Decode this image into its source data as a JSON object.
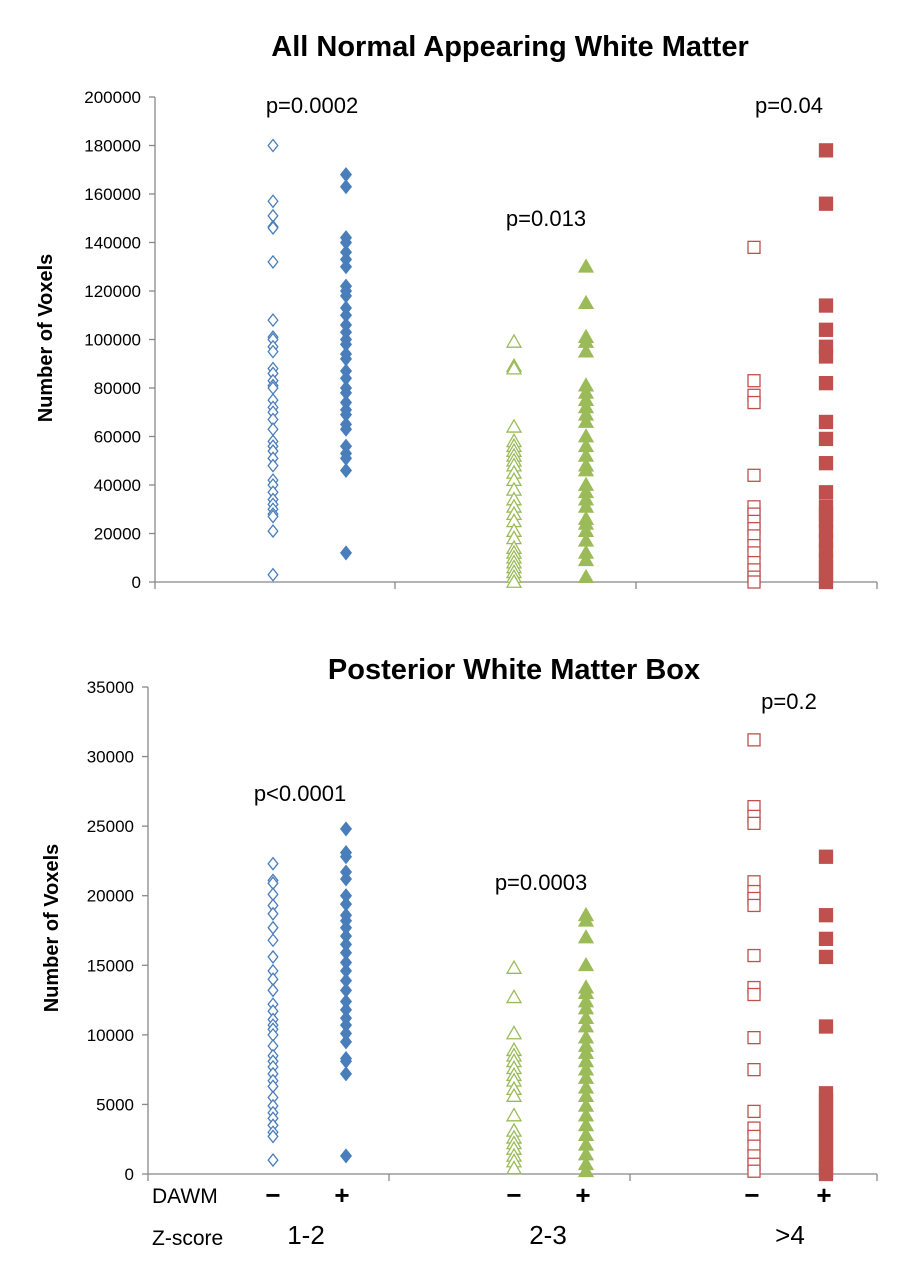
{
  "colors": {
    "blue": "#4a7ebb",
    "green": "#9bbb59",
    "red": "#c0504d"
  },
  "footer": {
    "dawm_label": "DAWM",
    "zscore_label": "Z-score",
    "signs": [
      "−",
      "+",
      "−",
      "+",
      "−",
      "+"
    ],
    "zscores": [
      "1-2",
      "2-3",
      ">4"
    ]
  },
  "chart_data": [
    {
      "type": "scatter",
      "title": "All Normal Appearing White Matter",
      "ylabel": "Number of Voxels",
      "ylim": [
        0,
        200000
      ],
      "yticks": [
        0,
        20000,
        40000,
        60000,
        80000,
        100000,
        120000,
        140000,
        160000,
        180000,
        200000
      ],
      "p_values": [
        "p=0.0002",
        "p=0.013",
        "p=0.04"
      ],
      "series": [
        {
          "group": "1-2",
          "dawm": "−",
          "marker": "diamond-open",
          "color": "#4a7ebb",
          "values": [
            180000,
            157000,
            151000,
            146500,
            146000,
            132000,
            108000,
            101000,
            100000,
            97000,
            95000,
            88000,
            86000,
            83000,
            81000,
            80000,
            75000,
            72000,
            70000,
            67000,
            63000,
            58000,
            56000,
            54000,
            51000,
            48000,
            42000,
            40000,
            37000,
            34000,
            32000,
            30000,
            28000,
            27000,
            21000,
            3000
          ]
        },
        {
          "group": "1-2",
          "dawm": "+",
          "marker": "diamond-filled",
          "color": "#4a7ebb",
          "values": [
            168000,
            163000,
            142000,
            140000,
            136000,
            133000,
            130000,
            122000,
            120000,
            118000,
            113000,
            110000,
            106000,
            103000,
            100000,
            98000,
            94000,
            92000,
            87000,
            84000,
            80000,
            78000,
            74000,
            71000,
            69000,
            65000,
            63000,
            56000,
            53000,
            51000,
            46000,
            12000
          ]
        },
        {
          "group": "2-3",
          "dawm": "−",
          "marker": "triangle-open",
          "color": "#9bbb59",
          "values": [
            99000,
            89000,
            88000,
            64000,
            58000,
            56000,
            54000,
            52000,
            50000,
            48000,
            45000,
            42000,
            38000,
            34000,
            31000,
            28000,
            25000,
            21000,
            18000,
            14000,
            12000,
            10000,
            8000,
            6000,
            4000,
            2000,
            0
          ]
        },
        {
          "group": "2-3",
          "dawm": "+",
          "marker": "triangle-filled",
          "color": "#9bbb59",
          "values": [
            130000,
            115000,
            101000,
            99000,
            95000,
            81000,
            78000,
            75000,
            72000,
            69000,
            66000,
            60000,
            56000,
            52000,
            48000,
            46000,
            40000,
            37000,
            34000,
            31000,
            26000,
            24000,
            21000,
            17000,
            12000,
            9000,
            2000
          ]
        },
        {
          "group": ">4",
          "dawm": "−",
          "marker": "square-open",
          "color": "#c0504d",
          "values": [
            138000,
            83000,
            77000,
            74000,
            44000,
            31000,
            28000,
            25000,
            22000,
            19000,
            15000,
            12000,
            8000,
            5000,
            2000,
            0
          ]
        },
        {
          "group": ">4",
          "dawm": "+",
          "marker": "square-filled",
          "color": "#c0504d",
          "values": [
            178000,
            156000,
            114000,
            104000,
            97000,
            93000,
            82000,
            66000,
            59000,
            49000,
            37000,
            31000,
            28000,
            25000,
            21000,
            17000,
            13000,
            9000,
            6000,
            3000,
            0
          ]
        }
      ]
    },
    {
      "type": "scatter",
      "title": "Posterior White Matter Box",
      "ylabel": "Number of Voxels",
      "ylim": [
        0,
        35000
      ],
      "yticks": [
        0,
        5000,
        10000,
        15000,
        20000,
        25000,
        30000,
        35000
      ],
      "p_values": [
        "p<0.0001",
        "p=0.0003",
        "p=0.2"
      ],
      "series": [
        {
          "group": "1-2",
          "dawm": "−",
          "marker": "diamond-open",
          "color": "#4a7ebb",
          "values": [
            22300,
            21100,
            20900,
            20100,
            19300,
            18700,
            17700,
            16800,
            15600,
            14600,
            14000,
            13200,
            12200,
            11700,
            11100,
            10700,
            10400,
            10000,
            9200,
            8500,
            8100,
            7700,
            7200,
            6700,
            6300,
            5500,
            4900,
            4400,
            4000,
            3500,
            3000,
            2700,
            1000
          ]
        },
        {
          "group": "1-2",
          "dawm": "+",
          "marker": "diamond-filled",
          "color": "#4a7ebb",
          "values": [
            24800,
            23100,
            22800,
            21700,
            21200,
            20000,
            19400,
            18600,
            18200,
            17700,
            17100,
            16500,
            15900,
            15200,
            14600,
            13900,
            13200,
            12400,
            11800,
            11200,
            10700,
            10100,
            9500,
            8300,
            8100,
            7200,
            1300
          ]
        },
        {
          "group": "2-3",
          "dawm": "−",
          "marker": "triangle-open",
          "color": "#9bbb59",
          "values": [
            14800,
            12700,
            10100,
            8900,
            8500,
            8100,
            7600,
            7100,
            6700,
            6100,
            5600,
            4200,
            3100,
            2600,
            2200,
            1800,
            1300,
            900,
            400
          ]
        },
        {
          "group": "2-3",
          "dawm": "+",
          "marker": "triangle-filled",
          "color": "#9bbb59",
          "values": [
            18600,
            18200,
            17000,
            15000,
            13400,
            13000,
            12400,
            11900,
            11200,
            10600,
            9800,
            9200,
            8700,
            8100,
            7500,
            6900,
            6200,
            5600,
            4900,
            4200,
            3500,
            2800,
            2100,
            1400,
            700,
            200
          ]
        },
        {
          "group": ">4",
          "dawm": "−",
          "marker": "square-open",
          "color": "#c0504d",
          "values": [
            31200,
            26400,
            25700,
            25200,
            21000,
            20300,
            19800,
            19300,
            15700,
            13400,
            12900,
            9800,
            7500,
            4500,
            3300,
            2700,
            2000,
            1300,
            700,
            200
          ]
        },
        {
          "group": ">4",
          "dawm": "+",
          "marker": "square-filled",
          "color": "#c0504d",
          "values": [
            22800,
            18600,
            16900,
            15600,
            10600,
            5800,
            5300,
            4800,
            4300,
            3800,
            3300,
            2800,
            2300,
            1800,
            1300,
            800,
            300,
            0
          ]
        }
      ]
    }
  ]
}
